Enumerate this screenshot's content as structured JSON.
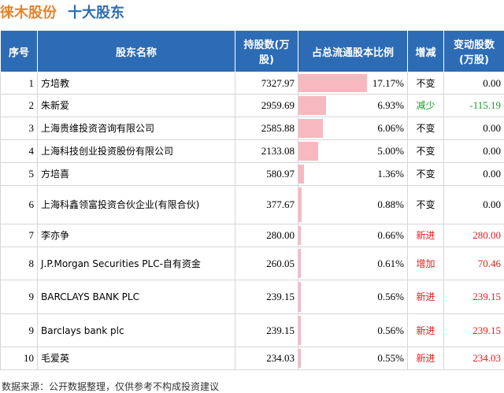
{
  "header": {
    "company": "徕木股份",
    "title": "十大股东"
  },
  "table": {
    "columns": [
      "序号",
      "股东名称",
      "持股数(万股)",
      "占总流通股本比例",
      "增减",
      "变动股数(万股)"
    ],
    "rows": [
      {
        "rank": "1",
        "name": "方培教",
        "shares": "7327.97",
        "pct": 17.17,
        "pct_label": "17.17%",
        "change": "不变",
        "delta": "0.00",
        "color": "#000000"
      },
      {
        "rank": "2",
        "name": "朱新爱",
        "shares": "2959.69",
        "pct": 6.93,
        "pct_label": "6.93%",
        "change": "减少",
        "delta": "-115.19",
        "color": "#1a9a2a"
      },
      {
        "rank": "3",
        "name": "上海贵维投资咨询有限公司",
        "shares": "2585.88",
        "pct": 6.06,
        "pct_label": "6.06%",
        "change": "不变",
        "delta": "0.00",
        "color": "#000000"
      },
      {
        "rank": "4",
        "name": "上海科技创业投资股份有限公司",
        "shares": "2133.08",
        "pct": 5.0,
        "pct_label": "5.00%",
        "change": "不变",
        "delta": "0.00",
        "color": "#000000"
      },
      {
        "rank": "5",
        "name": "方培喜",
        "shares": "580.97",
        "pct": 1.36,
        "pct_label": "1.36%",
        "change": "不变",
        "delta": "0.00",
        "color": "#000000"
      },
      {
        "rank": "6",
        "name": "上海科鑫领富投资合伙企业(有限合伙)",
        "shares": "377.67",
        "pct": 0.88,
        "pct_label": "0.88%",
        "change": "不变",
        "delta": "0.00",
        "color": "#000000"
      },
      {
        "rank": "7",
        "name": "李亦争",
        "shares": "280.00",
        "pct": 0.66,
        "pct_label": "0.66%",
        "change": "新进",
        "delta": "280.00",
        "color": "#e02020"
      },
      {
        "rank": "8",
        "name": "J.P.Morgan Securities PLC-自有资金",
        "shares": "260.05",
        "pct": 0.61,
        "pct_label": "0.61%",
        "change": "增加",
        "delta": "70.46",
        "color": "#e02020"
      },
      {
        "rank": "9",
        "name": "BARCLAYS BANK PLC",
        "shares": "239.15",
        "pct": 0.56,
        "pct_label": "0.56%",
        "change": "新进",
        "delta": "239.15",
        "color": "#e02020"
      },
      {
        "rank": "9",
        "name": "Barclays bank plc",
        "shares": "239.15",
        "pct": 0.56,
        "pct_label": "0.56%",
        "change": "新进",
        "delta": "239.15",
        "color": "#e02020"
      },
      {
        "rank": "10",
        "name": "毛爱英",
        "shares": "234.03",
        "pct": 0.55,
        "pct_label": "0.55%",
        "change": "新进",
        "delta": "234.03",
        "color": "#e02020"
      }
    ]
  },
  "footer": {
    "source": "数据来源：公开数据整理，仅供参考不构成投资建议"
  }
}
